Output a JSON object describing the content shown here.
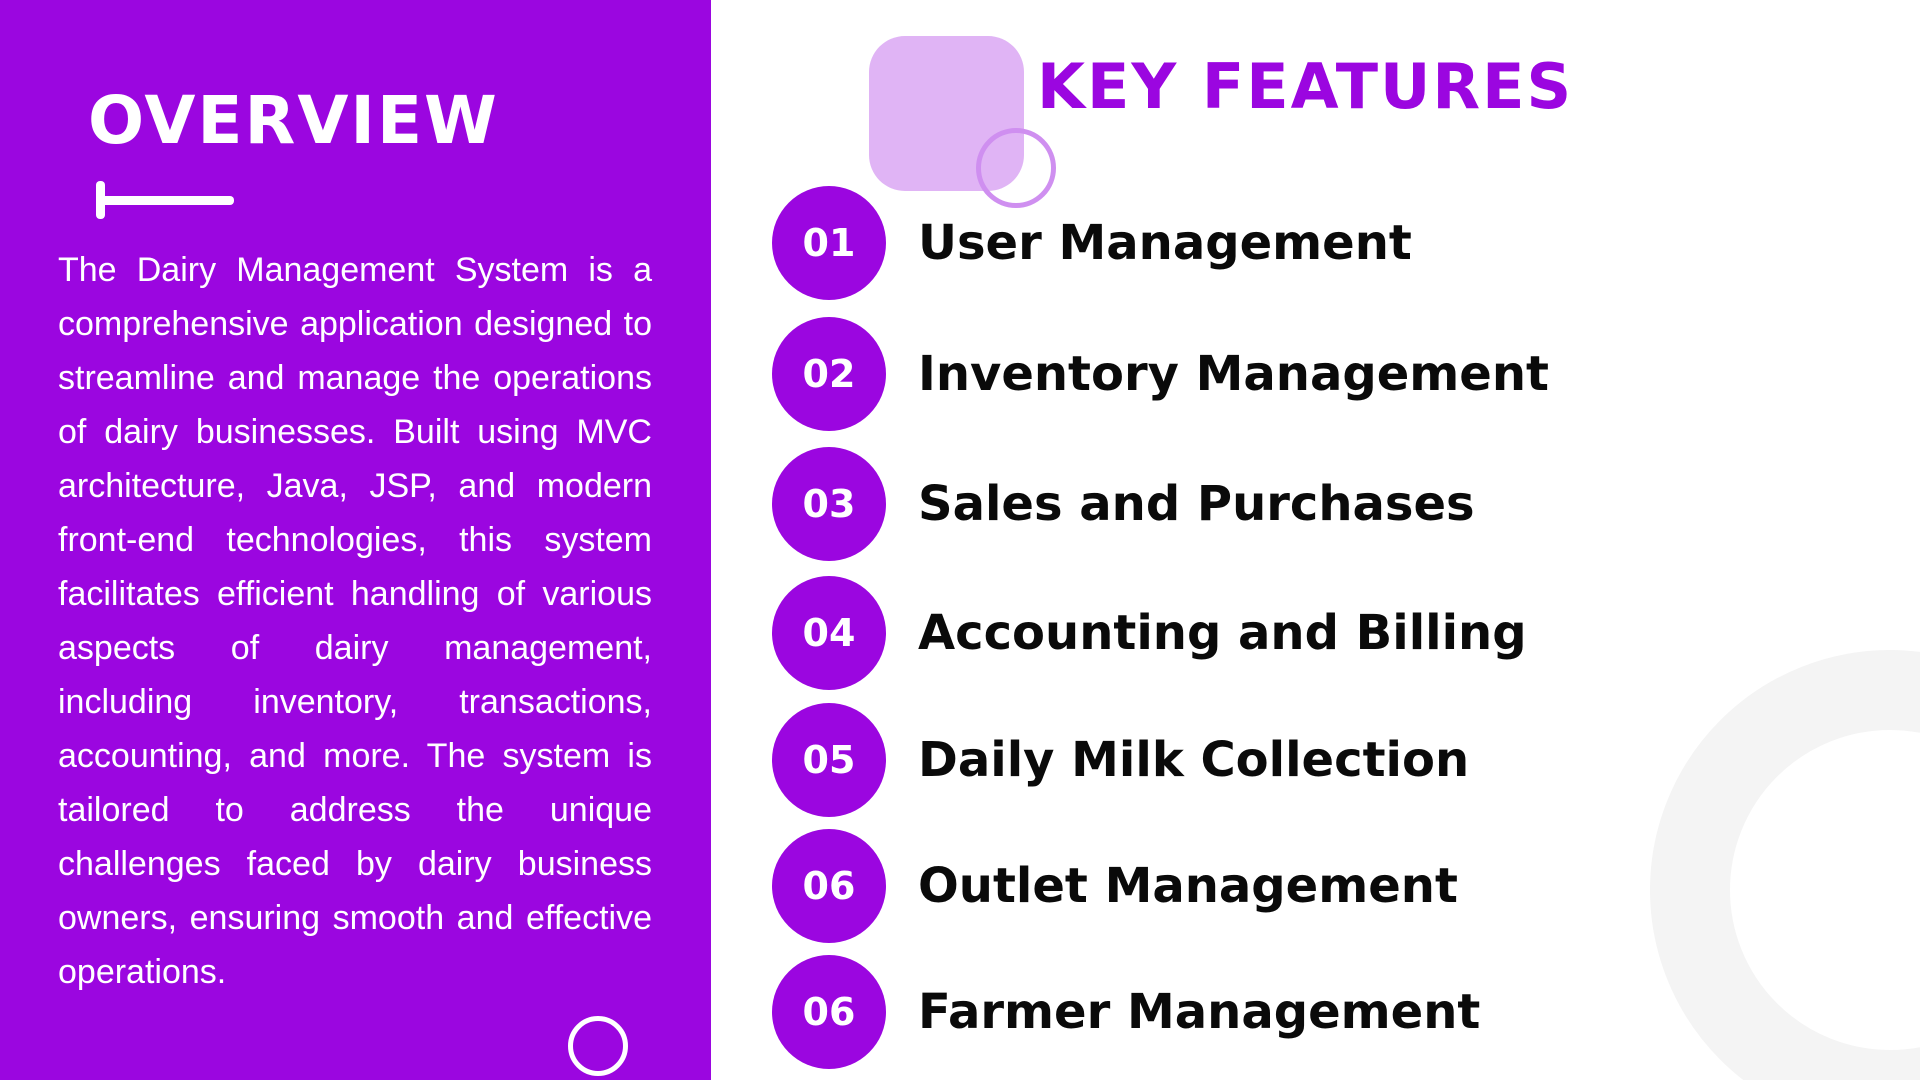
{
  "overview": {
    "title": "OVERVIEW",
    "body": "The Dairy Management System is a comprehensive application designed to streamline and manage the operations of dairy businesses. Built using MVC architecture, Java, JSP, and modern front-end technologies, this system facilitates efficient handling of various aspects of dairy management, including inventory, transactions, accounting, and more. The system is tailored to address the unique challenges faced by dairy business owners, ensuring smooth and effective operations."
  },
  "features": {
    "title": "KEY FEATURES",
    "items": [
      {
        "number": "01",
        "label": "User Management"
      },
      {
        "number": "02",
        "label": "Inventory Management"
      },
      {
        "number": "03",
        "label": "Sales and Purchases"
      },
      {
        "number": "04",
        "label": "Accounting and Billing"
      },
      {
        "number": "05",
        "label": "Daily Milk Collection"
      },
      {
        "number": "06",
        "label": "Outlet Management"
      },
      {
        "number": "06",
        "label": "Farmer Management"
      }
    ]
  },
  "colors": {
    "accent": "#9b06e0",
    "accent_light": "#e0b4f5",
    "text_dark": "#0a0a0a",
    "background": "#ffffff"
  }
}
